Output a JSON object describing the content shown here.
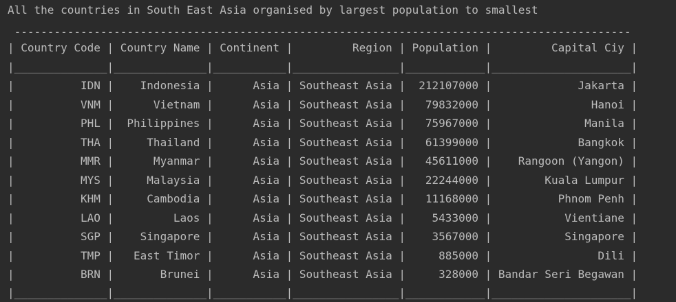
{
  "terminal": {
    "title": "All the countries in South East Asia organised by largest population to smallest"
  },
  "table": {
    "columns": [
      {
        "label": "Country Code",
        "width": 12,
        "align": "left"
      },
      {
        "label": "Country Name",
        "width": 12,
        "align": "left"
      },
      {
        "label": "Continent",
        "width": 9,
        "align": "left"
      },
      {
        "label": "Region",
        "width": 14,
        "align": "right"
      },
      {
        "label": "Population",
        "width": 10,
        "align": "left"
      },
      {
        "label": "Capital Ciy",
        "width": 19,
        "align": "right"
      }
    ],
    "rows": [
      [
        "IDN",
        "Indonesia",
        "Asia",
        "Southeast Asia",
        "212107000",
        "Jakarta"
      ],
      [
        "VNM",
        "Vietnam",
        "Asia",
        "Southeast Asia",
        "79832000",
        "Hanoi"
      ],
      [
        "PHL",
        "Philippines",
        "Asia",
        "Southeast Asia",
        "75967000",
        "Manila"
      ],
      [
        "THA",
        "Thailand",
        "Asia",
        "Southeast Asia",
        "61399000",
        "Bangkok"
      ],
      [
        "MMR",
        "Myanmar",
        "Asia",
        "Southeast Asia",
        "45611000",
        "Rangoon (Yangon)"
      ],
      [
        "MYS",
        "Malaysia",
        "Asia",
        "Southeast Asia",
        "22244000",
        "Kuala Lumpur"
      ],
      [
        "KHM",
        "Cambodia",
        "Asia",
        "Southeast Asia",
        "11168000",
        "Phnom Penh"
      ],
      [
        "LAO",
        "Laos",
        "Asia",
        "Southeast Asia",
        "5433000",
        "Vientiane"
      ],
      [
        "SGP",
        "Singapore",
        "Asia",
        "Southeast Asia",
        "3567000",
        "Singapore"
      ],
      [
        "TMP",
        "East Timor",
        "Asia",
        "Southeast Asia",
        "885000",
        "Dili"
      ],
      [
        "BRN",
        "Brunei",
        "Asia",
        "Southeast Asia",
        "328000",
        "Bandar Seri Begawan"
      ]
    ]
  },
  "colors": {
    "background": "#2b2b2b",
    "text": "#bbbbbb"
  }
}
